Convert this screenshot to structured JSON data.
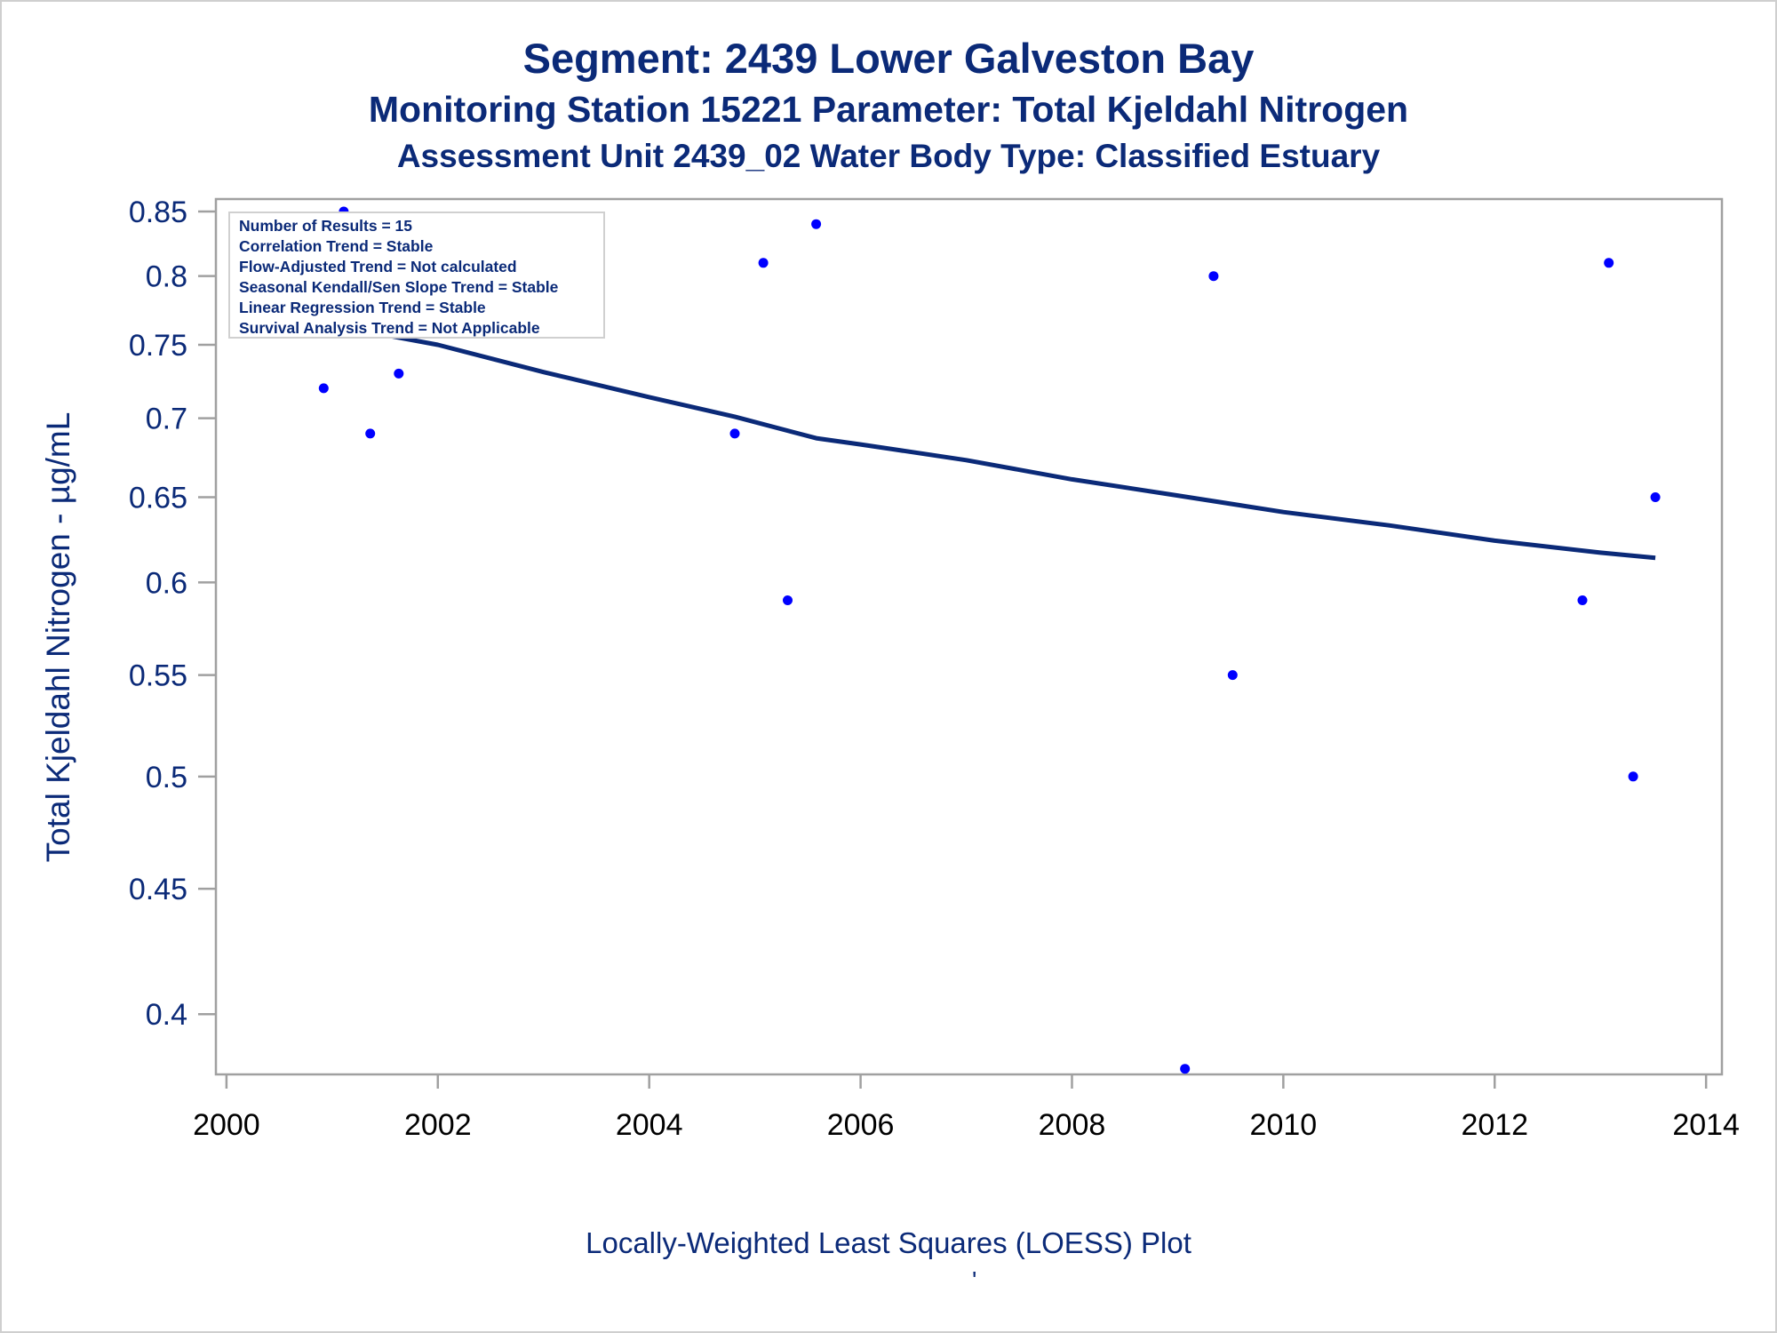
{
  "colors": {
    "title": "#0b2a78",
    "axis_text": "#0b2a78",
    "tick_text": "#000000",
    "frame": "#a0a0a0",
    "points": "#0000ff",
    "loess": "#0b2a78"
  },
  "titles": {
    "line1": "Segment: 2439  Lower Galveston Bay",
    "line2": "Monitoring Station 15221 Parameter: Total Kjeldahl Nitrogen",
    "line3": "Assessment Unit 2439_02   Water Body Type: Classified Estuary"
  },
  "footnote": "Locally-Weighted Least Squares (LOESS) Plot",
  "footnote_mark": "'",
  "chart_data": {
    "type": "scatter",
    "ylabel": "Total Kjeldahl Nitrogen -  µg/mL",
    "xlabel": "",
    "y_scale": "log",
    "xlim": [
      1999.9,
      2014.15
    ],
    "ylim": [
      0.378,
      0.86
    ],
    "x_ticks": [
      2000,
      2002,
      2004,
      2006,
      2008,
      2010,
      2012,
      2014
    ],
    "x_tick_labels": [
      "2000",
      "2002",
      "2004",
      "2006",
      "2008",
      "2010",
      "2012",
      "2014"
    ],
    "y_ticks": [
      0.4,
      0.45,
      0.5,
      0.55,
      0.6,
      0.65,
      0.7,
      0.75,
      0.8,
      0.85
    ],
    "y_tick_labels": [
      "0.4",
      "0.45",
      "0.5",
      "0.55",
      "0.6",
      "0.65",
      "0.7",
      "0.75",
      "0.8",
      "0.85"
    ],
    "grid": false,
    "points": [
      {
        "x": 2000.92,
        "y": 0.72
      },
      {
        "x": 2001.11,
        "y": 0.85
      },
      {
        "x": 2001.36,
        "y": 0.69
      },
      {
        "x": 2001.63,
        "y": 0.73
      },
      {
        "x": 2004.81,
        "y": 0.69
      },
      {
        "x": 2005.08,
        "y": 0.81
      },
      {
        "x": 2005.31,
        "y": 0.59
      },
      {
        "x": 2005.58,
        "y": 0.84
      },
      {
        "x": 2009.07,
        "y": 0.38
      },
      {
        "x": 2009.34,
        "y": 0.8
      },
      {
        "x": 2009.52,
        "y": 0.55
      },
      {
        "x": 2012.83,
        "y": 0.59
      },
      {
        "x": 2013.08,
        "y": 0.81
      },
      {
        "x": 2013.31,
        "y": 0.5
      },
      {
        "x": 2013.52,
        "y": 0.65
      }
    ],
    "series": [
      {
        "type": "line",
        "x": [
          2000.92,
          2002.0,
          2003.0,
          2004.0,
          2004.81,
          2005.58,
          2006.0,
          2007.0,
          2008.0,
          2009.0,
          2010.0,
          2011.0,
          2012.0,
          2013.0,
          2013.52
        ],
        "y": [
          0.765,
          0.75,
          0.731,
          0.714,
          0.701,
          0.687,
          0.683,
          0.673,
          0.661,
          0.651,
          0.641,
          0.633,
          0.624,
          0.617,
          0.614
        ]
      }
    ],
    "annotation_box": [
      "Number of Results = 15",
      "Correlation Trend = Stable",
      "Flow-Adjusted Trend = Not calculated",
      "Seasonal Kendall/Sen Slope Trend = Stable",
      "Linear Regression Trend = Stable",
      "Survival Analysis Trend = Not Applicable"
    ]
  }
}
